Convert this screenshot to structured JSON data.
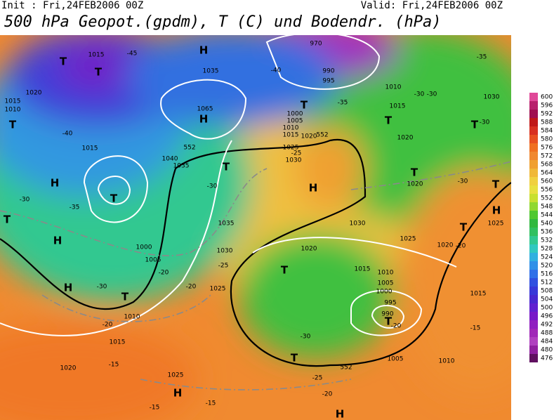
{
  "header": {
    "init": "Init : Fri,24FEB2006 00Z",
    "valid": "Valid: Fri,24FEB2006 00Z",
    "title": "500 hPa Geopot.(gpdm), T (C) und Bodendr. (hPa)"
  },
  "colorbar": {
    "ticks": [
      600,
      596,
      592,
      588,
      584,
      580,
      576,
      572,
      568,
      564,
      560,
      556,
      552,
      548,
      544,
      540,
      536,
      532,
      528,
      524,
      520,
      516,
      512,
      508,
      504,
      500,
      496,
      492,
      488,
      484,
      480,
      476
    ],
    "colors": [
      "#e04898",
      "#b8206c",
      "#a01050",
      "#c01818",
      "#d83020",
      "#e85020",
      "#f07020",
      "#f08830",
      "#f0a030",
      "#f0b838",
      "#f0d040",
      "#e8e040",
      "#c8e030",
      "#90d830",
      "#50c830",
      "#30b840",
      "#30c060",
      "#30c890",
      "#30c8c0",
      "#30b0e0",
      "#3090e8",
      "#3070e8",
      "#3050e0",
      "#3838d8",
      "#4828d0",
      "#6020d0",
      "#7818c8",
      "#9020c0",
      "#a028b8",
      "#b040c0",
      "#9020a0",
      "#601060"
    ]
  },
  "labels": [
    "H",
    "T",
    "T",
    "1015",
    "-45",
    "1020",
    "1015",
    "1010",
    "T",
    "-40",
    "1015",
    "H",
    "T",
    "-35",
    "-30",
    "T",
    "H",
    "H",
    "T",
    "-30",
    "1000",
    "1005",
    "-20",
    "1010",
    "-20",
    "1015",
    "1020",
    "-15",
    "1025",
    "H",
    "-15",
    "-15",
    "H",
    "1035",
    "1065",
    "1040",
    "1035",
    "T",
    "-30",
    "1035",
    "1030",
    "-25",
    "-20",
    "1025",
    "970",
    "990",
    "995",
    "-40",
    "T",
    "1000",
    "1005",
    "1010",
    "1015",
    "1020",
    "1025",
    "1030",
    "H",
    "-25",
    "-35",
    "1010",
    "1015",
    "-30",
    "-30",
    "T",
    "1020",
    "T",
    "1020",
    "-30",
    "T",
    "H",
    "T",
    "1025",
    "1030",
    "-35",
    "T",
    "-30",
    "1030",
    "1025",
    "1020",
    "-20",
    "T",
    "1020",
    "1015",
    "1010",
    "1005",
    "1000",
    "995",
    "990",
    "T",
    "-20",
    "-15",
    "1015",
    "-30",
    "T",
    "1005",
    "1010",
    "-25",
    "-20",
    "H",
    "552",
    "552",
    "552"
  ]
}
